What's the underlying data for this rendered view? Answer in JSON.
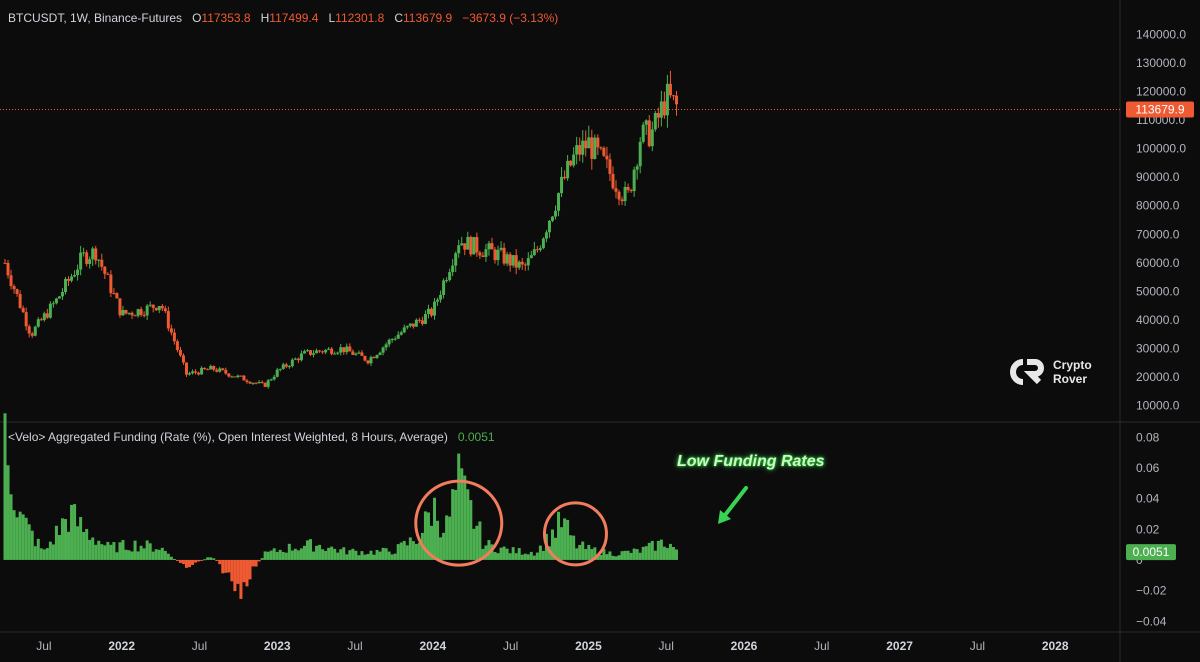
{
  "header": {
    "symbol": "BTCUSDT, 1W, Binance-Futures",
    "o_label": "O",
    "o_value": "117353.8",
    "h_label": "H",
    "h_value": "117499.4",
    "l_label": "L",
    "l_value": "112301.8",
    "c_label": "C",
    "c_value": "113679.9",
    "change": "−3673.9 (−3.13%)"
  },
  "indicator": {
    "title": "<Velo> Aggregated Funding (Rate (%), Open Interest Weighted, 8 Hours, Average)",
    "value": "0.0051"
  },
  "logo": {
    "line1": "Crypto",
    "line2": "Rover"
  },
  "annotation": {
    "text": "Low Funding Rates"
  },
  "colors": {
    "up": "#4caf50",
    "down": "#f05a32",
    "highlight": "#f27c5c",
    "text": "#d1d4dc",
    "annot": "#39d353"
  },
  "chart_data": [
    {
      "type": "candlestick",
      "title": "BTCUSDT, 1W, Binance-Futures",
      "y_axis": {
        "ticks": [
          "140000.0",
          "130000.0",
          "120000.0",
          "110000.0",
          "100000.0",
          "90000.0",
          "80000.0",
          "70000.0",
          "60000.0",
          "50000.0",
          "40000.0",
          "30000.0",
          "20000.0",
          "10000.0"
        ],
        "ylim": [
          5000,
          145000
        ]
      },
      "x_axis": {
        "ticks": [
          "Jul",
          "2022",
          "Jul",
          "2023",
          "Jul",
          "2024",
          "Jul",
          "2025",
          "Jul",
          "2026",
          "Jul",
          "2027",
          "Jul",
          "2028"
        ],
        "range": [
          "2021-04",
          "2028-06"
        ]
      },
      "last_price": "113679.9",
      "series": [
        {
          "x": [
            "2021-04",
            "2021-06",
            "2021-08",
            "2021-10",
            "2021-11",
            "2022-01",
            "2022-03",
            "2022-04",
            "2022-06",
            "2022-08",
            "2022-10",
            "2022-12",
            "2023-01",
            "2023-03",
            "2023-04",
            "2023-06",
            "2023-08",
            "2023-10",
            "2023-11",
            "2024-01",
            "2024-03",
            "2024-04",
            "2024-06",
            "2024-08",
            "2024-09",
            "2024-11",
            "2024-12",
            "2025-01",
            "2025-02",
            "2025-04",
            "2025-05",
            "2025-06",
            "2025-07",
            "2025-08"
          ],
          "values": [
            60000,
            35000,
            47000,
            62000,
            64000,
            42000,
            44000,
            46000,
            21000,
            23000,
            20000,
            17000,
            22000,
            28000,
            29000,
            30000,
            26000,
            34000,
            37000,
            43000,
            68000,
            66000,
            63000,
            58000,
            64000,
            88000,
            98000,
            102000,
            96000,
            82000,
            104000,
            106000,
            118000,
            113680
          ]
        }
      ]
    },
    {
      "type": "bar",
      "title": "<Velo> Aggregated Funding (Rate (%), Open Interest Weighted, 8 Hours, Average)",
      "y_axis": {
        "ticks": [
          "0.08",
          "0.06",
          "0.04",
          "0.02",
          "0",
          "−0.02",
          "−0.04"
        ],
        "ylim": [
          -0.047,
          0.088
        ]
      },
      "current_value": 0.0051,
      "series": [
        {
          "x": [
            "2021-04",
            "2021-05",
            "2021-07",
            "2021-09",
            "2021-10",
            "2021-12",
            "2022-02",
            "2022-04",
            "2022-06",
            "2022-08",
            "2022-10",
            "2022-12",
            "2023-02",
            "2023-04",
            "2023-06",
            "2023-08",
            "2023-10",
            "2023-12",
            "2024-01",
            "2024-02",
            "2024-03",
            "2024-04",
            "2024-05",
            "2024-07",
            "2024-09",
            "2024-10",
            "2024-11",
            "2024-12",
            "2025-01",
            "2025-03",
            "2025-05",
            "2025-07",
            "2025-08"
          ],
          "values": [
            0.09,
            0.03,
            0.005,
            0.03,
            0.02,
            0.008,
            0.01,
            0.008,
            -0.005,
            0.003,
            -0.02,
            0.004,
            0.008,
            0.01,
            0.006,
            0.005,
            0.006,
            0.015,
            0.035,
            0.02,
            0.05,
            0.03,
            0.01,
            0.006,
            0.005,
            0.015,
            0.025,
            0.01,
            0.007,
            0.004,
            0.006,
            0.012,
            0.0051
          ]
        }
      ],
      "annotations": [
        {
          "type": "circle",
          "label": "2024 funding spike"
        },
        {
          "type": "circle",
          "label": "late 2024 funding spike"
        },
        {
          "type": "arrow",
          "text": "Low Funding Rates"
        }
      ]
    }
  ]
}
